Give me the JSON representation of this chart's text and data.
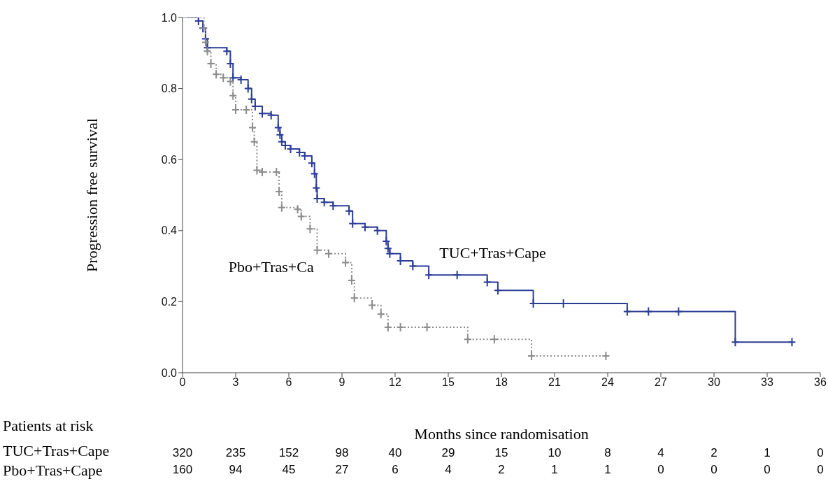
{
  "chart_data": {
    "type": "step",
    "xlabel": "Months since randomisation",
    "ylabel": "Progression free survival",
    "xlim": [
      0,
      36
    ],
    "xticks": [
      0,
      3,
      6,
      9,
      12,
      15,
      18,
      21,
      24,
      27,
      30,
      33,
      36
    ],
    "ylim": [
      0,
      1
    ],
    "yticks": [
      {
        "value": 0,
        "label": "0.0"
      },
      {
        "value": 0.2,
        "label": "0.2"
      },
      {
        "value": 0.4,
        "label": "0.4"
      },
      {
        "value": 0.6,
        "label": "0.6"
      },
      {
        "value": 0.8,
        "label": "0.8"
      },
      {
        "value": 1,
        "label": "1.0"
      }
    ],
    "marker": "cross",
    "series": [
      {
        "name": "TUC+Tras+Cape",
        "color": "#2b3d97",
        "line_style": "solid",
        "x": [
          0,
          0.9,
          1.15,
          1.3,
          1.4,
          2.5,
          2.7,
          2.85,
          3.3,
          3.7,
          3.9,
          4.1,
          4.5,
          5.0,
          5.4,
          5.5,
          5.6,
          5.8,
          6.1,
          6.6,
          6.9,
          7.3,
          7.45,
          7.55,
          7.6,
          8.0,
          8.5,
          9.4,
          9.6,
          10.3,
          11.0,
          11.5,
          11.6,
          11.7,
          12.3,
          13.0,
          13.9,
          15.5,
          17.2,
          17.8,
          19.8,
          21.5,
          25.1,
          26.3,
          28.0,
          31.2,
          34.4
        ],
        "values": [
          1.0,
          0.99,
          0.97,
          0.94,
          0.915,
          0.905,
          0.87,
          0.83,
          0.825,
          0.8,
          0.77,
          0.75,
          0.73,
          0.725,
          0.69,
          0.67,
          0.65,
          0.64,
          0.63,
          0.62,
          0.61,
          0.59,
          0.56,
          0.52,
          0.49,
          0.48,
          0.47,
          0.455,
          0.42,
          0.41,
          0.4,
          0.37,
          0.35,
          0.335,
          0.315,
          0.3,
          0.275,
          0.275,
          0.255,
          0.232,
          0.195,
          0.195,
          0.172,
          0.172,
          0.172,
          0.086,
          0.086
        ]
      },
      {
        "name": "Pbo+Tras+Ca",
        "color": "#8c8c8c",
        "line_style": "dotted",
        "x": [
          0,
          1.2,
          1.3,
          1.4,
          1.6,
          1.9,
          2.3,
          2.7,
          2.85,
          3.0,
          3.6,
          3.95,
          4.05,
          4.2,
          4.5,
          5.3,
          5.45,
          5.6,
          6.5,
          6.7,
          7.2,
          7.6,
          8.25,
          9.2,
          9.55,
          9.7,
          10.7,
          11.2,
          11.6,
          12.3,
          13.8,
          16.1,
          17.6,
          19.7,
          23.9
        ],
        "values": [
          1.0,
          0.97,
          0.93,
          0.905,
          0.87,
          0.84,
          0.83,
          0.82,
          0.78,
          0.74,
          0.74,
          0.69,
          0.65,
          0.57,
          0.565,
          0.565,
          0.51,
          0.465,
          0.46,
          0.44,
          0.405,
          0.345,
          0.335,
          0.31,
          0.26,
          0.21,
          0.19,
          0.165,
          0.128,
          0.128,
          0.128,
          0.094,
          0.094,
          0.047,
          0.047
        ]
      }
    ],
    "annotations": [
      "Patients at risk",
      "TUC+Tras+Cape",
      "320",
      "235",
      "152",
      "98",
      "40",
      "29",
      "15",
      "10",
      "8",
      "4",
      "2",
      "1",
      "0",
      "Pbo+Tras+Cape",
      "160",
      "94",
      "45",
      "27",
      "6",
      "4",
      "2",
      "1",
      "1",
      "0",
      "0",
      "0",
      "0"
    ]
  }
}
